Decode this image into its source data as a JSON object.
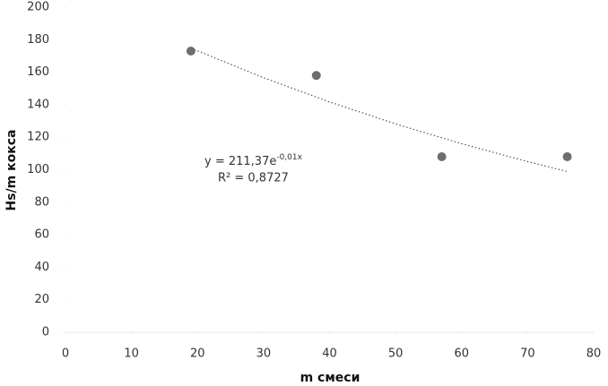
{
  "chart_data": {
    "type": "scatter",
    "x_label": "m смеси",
    "y_label": "Hs/m кокса",
    "series": [
      {
        "color": "#6e6e6e",
        "x": [
          19,
          38,
          57,
          76
        ],
        "values": [
          173,
          158,
          108,
          108
        ]
      }
    ],
    "trendline": {
      "color": "#555555",
      "x": [
        19,
        30,
        40,
        50,
        60,
        70,
        76
      ],
      "values": [
        174.8,
        156.6,
        141.7,
        128.2,
        116.0,
        105.0,
        98.9
      ]
    },
    "equation": {
      "base": "y = 211,37e",
      "exponent": "-0,01x"
    },
    "r_squared": "R² = 0,8727",
    "xlim": [
      0,
      80
    ],
    "xticks": [
      0,
      10,
      20,
      30,
      40,
      50,
      60,
      70,
      80
    ],
    "ylim": [
      0,
      200
    ],
    "yticks": [
      0,
      20,
      40,
      60,
      80,
      100,
      120,
      140,
      160,
      180,
      200
    ],
    "grid": false
  }
}
